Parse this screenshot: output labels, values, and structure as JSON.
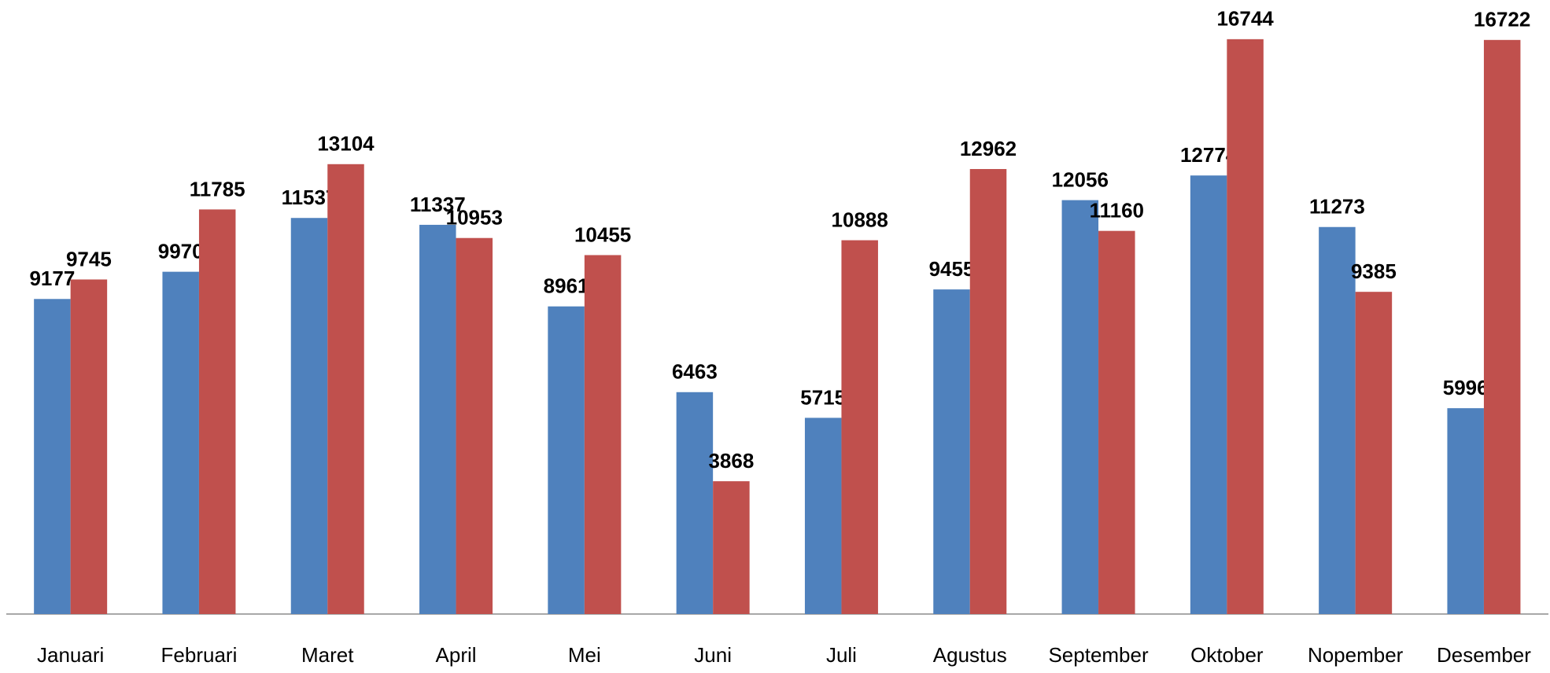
{
  "chart_data": {
    "type": "bar",
    "categories": [
      "Januari",
      "Februari",
      "Maret",
      "April",
      "Mei",
      "Juni",
      "Juli",
      "Agustus",
      "September",
      "Oktober",
      "Nopember",
      "Desember"
    ],
    "series": [
      {
        "color": "#4f81bd",
        "values": [
          9177,
          9970,
          11537,
          11337,
          8961,
          6463,
          5715,
          9455,
          12056,
          12774,
          11273,
          5996
        ]
      },
      {
        "color": "#c0504d",
        "values": [
          9745,
          11785,
          13104,
          10953,
          10455,
          3868,
          10888,
          12962,
          11160,
          16744,
          9385,
          16722
        ]
      }
    ],
    "ylim": [
      0,
      18000
    ]
  }
}
